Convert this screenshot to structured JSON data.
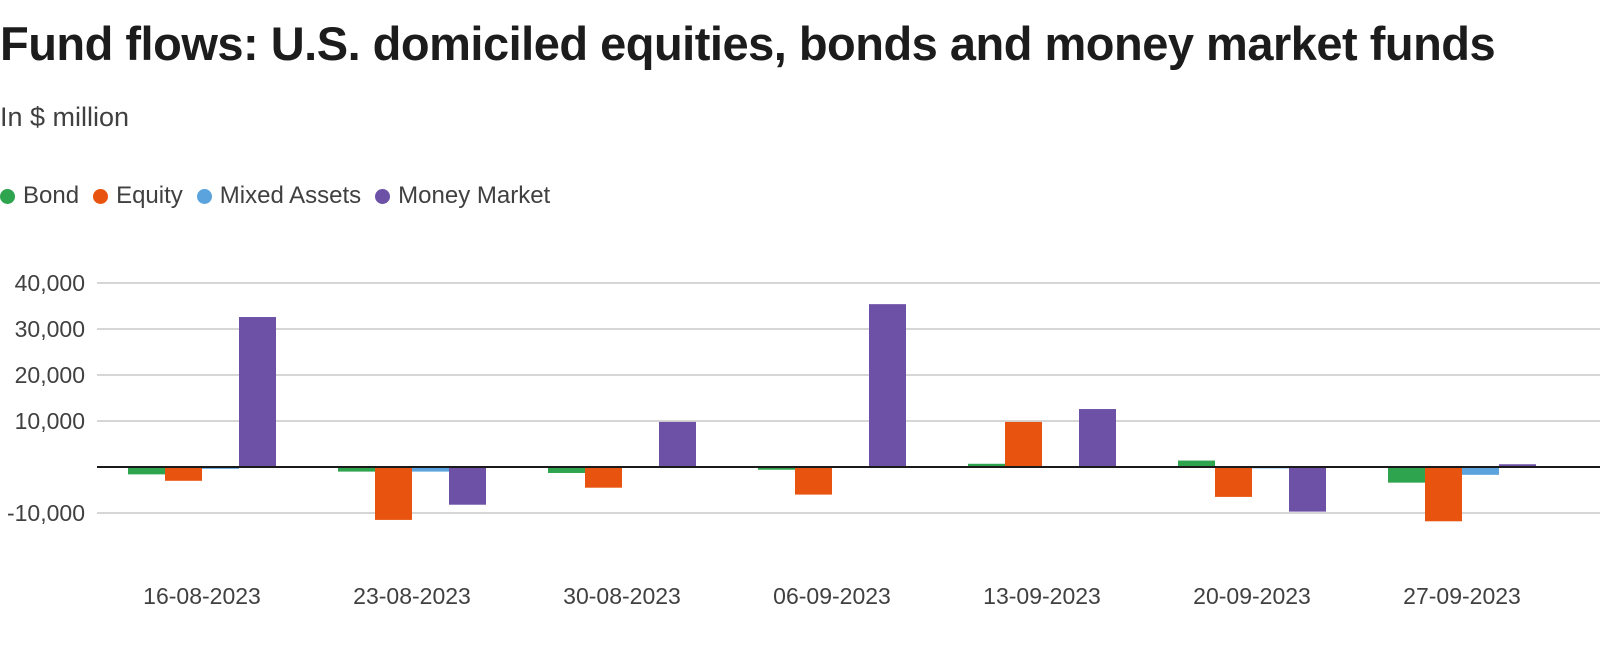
{
  "title": "Fund flows: U.S. domiciled equities, bonds and money market funds",
  "subtitle": "In $ million",
  "legend": [
    {
      "label": "Bond",
      "color": "#2ea44f"
    },
    {
      "label": "Equity",
      "color": "#e8540f"
    },
    {
      "label": "Mixed Assets",
      "color": "#5ba3dc"
    },
    {
      "label": "Money Market",
      "color": "#6c51a6"
    }
  ],
  "chart_data": {
    "type": "bar",
    "title": "Fund flows: U.S. domiciled equities, bonds and money market funds",
    "subtitle": "In $ million",
    "categories": [
      "16-08-2023",
      "23-08-2023",
      "30-08-2023",
      "06-09-2023",
      "13-09-2023",
      "20-09-2023",
      "27-09-2023"
    ],
    "series": [
      {
        "name": "Bond",
        "color": "#2ea44f",
        "values": [
          -1600,
          -1000,
          -1300,
          -600,
          700,
          1400,
          -3400
        ]
      },
      {
        "name": "Equity",
        "color": "#e8540f",
        "values": [
          -3000,
          -11500,
          -4500,
          -6000,
          9800,
          -6500,
          -11800
        ]
      },
      {
        "name": "Mixed Assets",
        "color": "#5ba3dc",
        "values": [
          -400,
          -1000,
          -200,
          -200,
          -100,
          -300,
          -1700
        ]
      },
      {
        "name": "Money Market",
        "color": "#6c51a6",
        "values": [
          32600,
          -8200,
          9800,
          35400,
          12600,
          -9700,
          600
        ]
      }
    ],
    "yticks": [
      40000,
      30000,
      20000,
      10000,
      -10000
    ],
    "ytick_labels": [
      "40,000",
      "30,000",
      "20,000",
      "10,000",
      "-10,000"
    ],
    "ylim": [
      -10000,
      40000
    ],
    "grid": true,
    "legend_position": "top-left"
  }
}
